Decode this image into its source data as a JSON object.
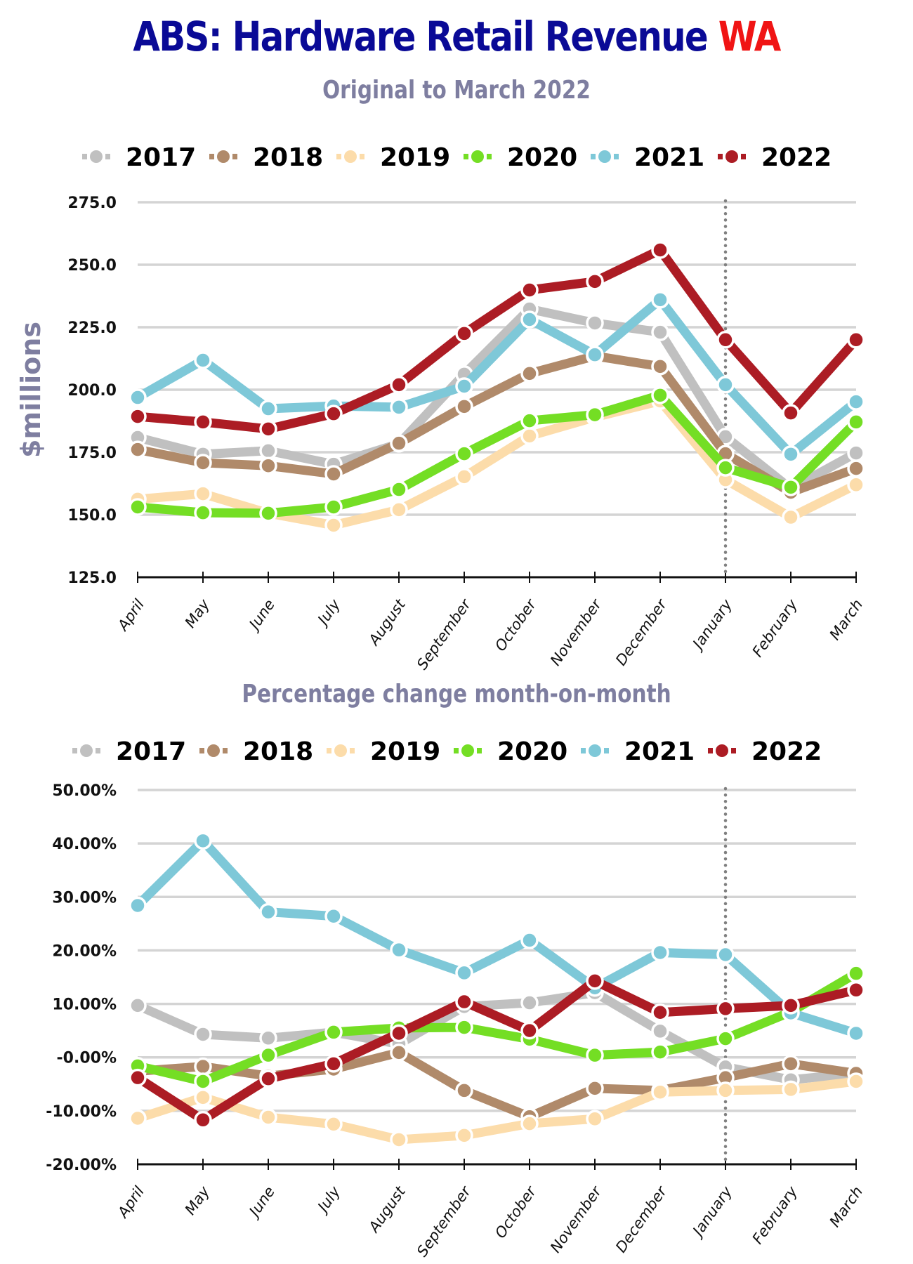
{
  "header": {
    "title_main": "ABS: Hardware Retail Revenue ",
    "title_accent": "WA",
    "title_main_color": "#0a0a96",
    "title_accent_color": "#f01414"
  },
  "chart_data": [
    {
      "type": "line",
      "subtitle": "Original to March 2022",
      "ylabel": "$millions",
      "xlabel": "",
      "categories": [
        "April",
        "May",
        "June",
        "July",
        "August",
        "September",
        "October",
        "November",
        "December",
        "January",
        "February",
        "March"
      ],
      "ylim": [
        125,
        275
      ],
      "yticks": [
        125,
        150,
        175,
        200,
        225,
        250,
        275
      ],
      "ytick_labels": [
        "125.0",
        "150.0",
        "175.0",
        "200.0",
        "225.0",
        "250.0",
        "275.0"
      ],
      "grid": true,
      "legend_position": "top",
      "marker_line_category": "January",
      "series": [
        {
          "name": "2017",
          "color": "#c0c0c0",
          "values": [
            180.9,
            174.2,
            175.6,
            170.2,
            178.4,
            206.2,
            232.3,
            226.7,
            223.0,
            181.2,
            160.4,
            174.7
          ]
        },
        {
          "name": "2018",
          "color": "#b08a6a",
          "values": [
            176.1,
            170.8,
            169.6,
            166.3,
            178.6,
            193.3,
            206.5,
            213.5,
            209.3,
            174.4,
            159.0,
            168.5
          ]
        },
        {
          "name": "2019",
          "color": "#fcdcaa",
          "values": [
            156.2,
            158.4,
            150.6,
            145.8,
            152.0,
            165.2,
            181.5,
            189.0,
            195.5,
            164.0,
            149.0,
            162.0
          ]
        },
        {
          "name": "2020",
          "color": "#74de24",
          "values": [
            153.1,
            150.8,
            150.6,
            153.1,
            160.1,
            174.4,
            187.6,
            190.0,
            197.8,
            168.8,
            161.0,
            187.1
          ]
        },
        {
          "name": "2021",
          "color": "#7ec8d8",
          "values": [
            196.9,
            211.8,
            192.4,
            193.5,
            193.0,
            201.4,
            228.1,
            214.0,
            236.0,
            202.0,
            174.2,
            195.2
          ]
        },
        {
          "name": "2022",
          "color": "#ac1c24",
          "values": [
            189.3,
            187.1,
            184.3,
            190.4,
            202.0,
            222.5,
            239.9,
            243.3,
            255.9,
            220.0,
            190.7,
            220.0
          ]
        }
      ]
    },
    {
      "type": "line",
      "subtitle": "Percentage change month-on-month",
      "ylabel": "",
      "xlabel": "",
      "categories": [
        "April",
        "May",
        "June",
        "July",
        "August",
        "September",
        "October",
        "November",
        "December",
        "January",
        "February",
        "March"
      ],
      "ylim": [
        -20,
        50
      ],
      "yticks": [
        -20,
        -10,
        0,
        10,
        20,
        30,
        40,
        50
      ],
      "ytick_labels": [
        "-20.00%",
        "-10.00%",
        "-0.00%",
        "10.00%",
        "20.00%",
        "30.00%",
        "40.00%",
        "50.00%"
      ],
      "grid": true,
      "legend_position": "top",
      "marker_line_category": "January",
      "series": [
        {
          "name": "2017",
          "color": "#c0c0c0",
          "values": [
            9.7,
            4.3,
            3.6,
            4.7,
            2.5,
            9.5,
            10.2,
            12.1,
            4.9,
            -1.8,
            -4.2,
            -3.0
          ]
        },
        {
          "name": "2018",
          "color": "#b08a6a",
          "values": [
            -2.6,
            -1.7,
            -3.5,
            -2.2,
            0.9,
            -6.2,
            -11.1,
            -5.8,
            -6.2,
            -3.8,
            -1.2,
            -3.0
          ]
        },
        {
          "name": "2019",
          "color": "#fcdcaa",
          "values": [
            -11.4,
            -7.5,
            -11.2,
            -12.5,
            -15.4,
            -14.6,
            -12.4,
            -11.5,
            -6.5,
            -6.2,
            -6.0,
            -4.5
          ]
        },
        {
          "name": "2020",
          "color": "#74de24",
          "values": [
            -1.6,
            -4.5,
            0.4,
            4.7,
            5.5,
            5.6,
            3.4,
            0.4,
            1.0,
            3.5,
            8.5,
            15.7
          ]
        },
        {
          "name": "2021",
          "color": "#7ec8d8",
          "values": [
            28.4,
            40.5,
            27.2,
            26.4,
            20.1,
            15.8,
            21.9,
            13.0,
            19.6,
            19.2,
            8.3,
            4.5
          ]
        },
        {
          "name": "2022",
          "color": "#ac1c24",
          "values": [
            -3.8,
            -11.7,
            -4.0,
            -1.2,
            4.5,
            10.4,
            5.0,
            14.3,
            8.4,
            9.1,
            9.7,
            12.6
          ]
        }
      ]
    }
  ]
}
